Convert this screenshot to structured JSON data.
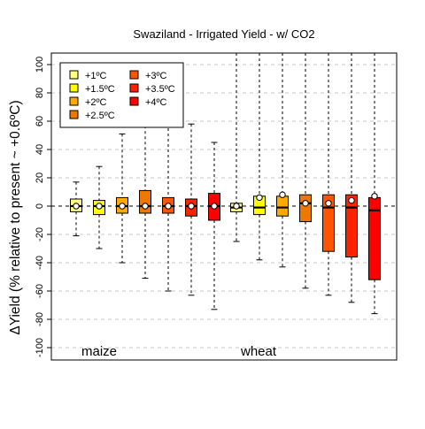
{
  "chart_data": {
    "type": "box",
    "title": "Swaziland - Irrigated Yield - w/ CO2",
    "ylabel": "ΔYield (% relative to present ~ +0.6ºC)",
    "xlabel": "",
    "ylim": [
      -110,
      105
    ],
    "yticks": [
      -100,
      -80,
      -60,
      -40,
      -20,
      0,
      20,
      40,
      60,
      80,
      100
    ],
    "grid": "horizontal dashed",
    "legend_placement": "top-left",
    "crop_labels": [
      "maize",
      "wheat"
    ],
    "legend": [
      {
        "label": "+1ºC",
        "color": "#ffff80"
      },
      {
        "label": "+1.5ºC",
        "color": "#ffff00"
      },
      {
        "label": "+2ºC",
        "color": "#ffaa00"
      },
      {
        "label": "+2.5ºC",
        "color": "#ee7700"
      },
      {
        "label": "+3ºC",
        "color": "#ff5500"
      },
      {
        "label": "+3.5ºC",
        "color": "#ff2200"
      },
      {
        "label": "+4ºC",
        "color": "#ff0000"
      }
    ],
    "series": [
      {
        "crop": "maize",
        "scenario": "+1ºC",
        "color": "#ffff80",
        "whisker_low": -21,
        "q1": -4,
        "median": 0,
        "q3": 5,
        "whisker_high": 17,
        "mean": 0
      },
      {
        "crop": "maize",
        "scenario": "+1.5ºC",
        "color": "#ffff00",
        "whisker_low": -30,
        "q1": -6,
        "median": 0,
        "q3": 4,
        "whisker_high": 28,
        "mean": 0
      },
      {
        "crop": "maize",
        "scenario": "+2ºC",
        "color": "#ffaa00",
        "whisker_low": -40,
        "q1": -5,
        "median": 0,
        "q3": 6,
        "whisker_high": 51,
        "mean": 0
      },
      {
        "crop": "maize",
        "scenario": "+2.5ºC",
        "color": "#ee7700",
        "whisker_low": -51,
        "q1": -5,
        "median": 0,
        "q3": 11,
        "whisker_high": 68,
        "mean": 0
      },
      {
        "crop": "maize",
        "scenario": "+3ºC",
        "color": "#ff5500",
        "whisker_low": -60,
        "q1": -5,
        "median": 0,
        "q3": 6,
        "whisker_high": 70,
        "mean": 0
      },
      {
        "crop": "maize",
        "scenario": "+3.5ºC",
        "color": "#ff2200",
        "whisker_low": -63,
        "q1": -7,
        "median": 0,
        "q3": 5,
        "whisker_high": 58,
        "mean": 0
      },
      {
        "crop": "maize",
        "scenario": "+4ºC",
        "color": "#ff0000",
        "whisker_low": -73,
        "q1": -10,
        "median": 0,
        "q3": 9,
        "whisker_high": 45,
        "mean": 0
      },
      {
        "crop": "wheat",
        "scenario": "+1ºC",
        "color": "#ffff80",
        "whisker_low": -25,
        "q1": -4,
        "median": -1,
        "q3": 2,
        "whisker_high": 110,
        "mean": 0
      },
      {
        "crop": "wheat",
        "scenario": "+1.5ºC",
        "color": "#ffff00",
        "whisker_low": -38,
        "q1": -6,
        "median": -1,
        "q3": 7,
        "whisker_high": 110,
        "mean": 6
      },
      {
        "crop": "wheat",
        "scenario": "+2ºC",
        "color": "#ffaa00",
        "whisker_low": -43,
        "q1": -7,
        "median": -1,
        "q3": 7,
        "whisker_high": 110,
        "mean": 8
      },
      {
        "crop": "wheat",
        "scenario": "+2.5ºC",
        "color": "#ee7700",
        "whisker_low": -58,
        "q1": -11,
        "median": 2,
        "q3": 8,
        "whisker_high": 110,
        "mean": 2
      },
      {
        "crop": "wheat",
        "scenario": "+3ºC",
        "color": "#ff5500",
        "whisker_low": -63,
        "q1": -32,
        "median": -1,
        "q3": 8,
        "whisker_high": 110,
        "mean": 2
      },
      {
        "crop": "wheat",
        "scenario": "+3.5ºC",
        "color": "#ff2200",
        "whisker_low": -68,
        "q1": -36,
        "median": -1,
        "q3": 8,
        "whisker_high": 110,
        "mean": 4
      },
      {
        "crop": "wheat",
        "scenario": "+4ºC",
        "color": "#ff0000",
        "whisker_low": -76,
        "q1": -52,
        "median": -3,
        "q3": 6,
        "whisker_high": 110,
        "mean": 7
      }
    ]
  }
}
